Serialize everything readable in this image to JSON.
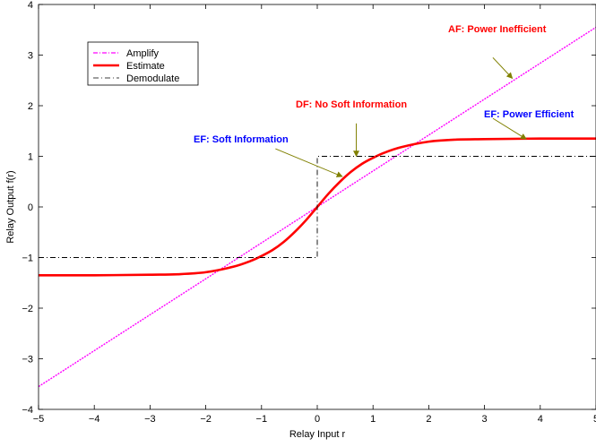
{
  "chart_data": {
    "type": "line",
    "xlabel": "Relay Input r",
    "ylabel": "Relay Output  f(r)",
    "xlim": [
      -5,
      5
    ],
    "ylim": [
      -4,
      4
    ],
    "xticks": [
      -5,
      -4,
      -3,
      -2,
      -1,
      0,
      1,
      2,
      3,
      4,
      5
    ],
    "yticks": [
      -4,
      -3,
      -2,
      -1,
      0,
      1,
      2,
      3,
      4
    ],
    "xtick_labels": [
      "−5",
      "−4",
      "−3",
      "−2",
      "−1",
      "0",
      "1",
      "2",
      "3",
      "4",
      "5"
    ],
    "ytick_labels": [
      "−4",
      "−3",
      "−2",
      "−1",
      "0",
      "1",
      "2",
      "3",
      "4"
    ],
    "grid": false,
    "legend_position": "top-left",
    "series": [
      {
        "name": "Amplify",
        "color": "#ff00ff",
        "style": "dash-dot",
        "x": [
          -5,
          5
        ],
        "y": [
          -3.55,
          3.55
        ]
      },
      {
        "name": "Estimate",
        "color": "#ff0000",
        "style": "solid",
        "x": [
          -5,
          -4,
          -3,
          -2.5,
          -2,
          -1.5,
          -1.2,
          -1,
          -0.8,
          -0.6,
          -0.4,
          -0.2,
          0,
          0.2,
          0.4,
          0.6,
          0.8,
          1,
          1.2,
          1.5,
          2,
          2.5,
          3,
          4,
          5
        ],
        "y": [
          -1.35,
          -1.35,
          -1.34,
          -1.33,
          -1.29,
          -1.18,
          -1.07,
          -0.97,
          -0.85,
          -0.69,
          -0.49,
          -0.26,
          0,
          0.26,
          0.49,
          0.69,
          0.85,
          0.97,
          1.07,
          1.18,
          1.29,
          1.33,
          1.34,
          1.35,
          1.35
        ]
      },
      {
        "name": "Demodulate",
        "color": "#000000",
        "style": "dash-dot",
        "x": [
          -5,
          0,
          0,
          5
        ],
        "y": [
          -1,
          -1,
          1,
          1
        ]
      }
    ],
    "annotations": [
      {
        "text": "AF: Power Inefficient",
        "color": "#ff0000",
        "arrow_to": [
          3.5,
          2.54
        ],
        "arrow_from": [
          3.15,
          2.95
        ]
      },
      {
        "text": "DF: No Soft Information",
        "color": "#ff0000",
        "arrow_to": [
          0.7,
          1.0
        ],
        "arrow_from": [
          0.7,
          1.65
        ]
      },
      {
        "text": "EF: Power Efficient",
        "color": "#0000ff",
        "arrow_to": [
          3.75,
          1.34
        ],
        "arrow_from": [
          3.15,
          1.75
        ]
      },
      {
        "text": "EF: Soft Information",
        "color": "#0000ff",
        "arrow_to": [
          0.45,
          0.6
        ],
        "arrow_from": [
          -0.75,
          1.15
        ]
      }
    ]
  }
}
